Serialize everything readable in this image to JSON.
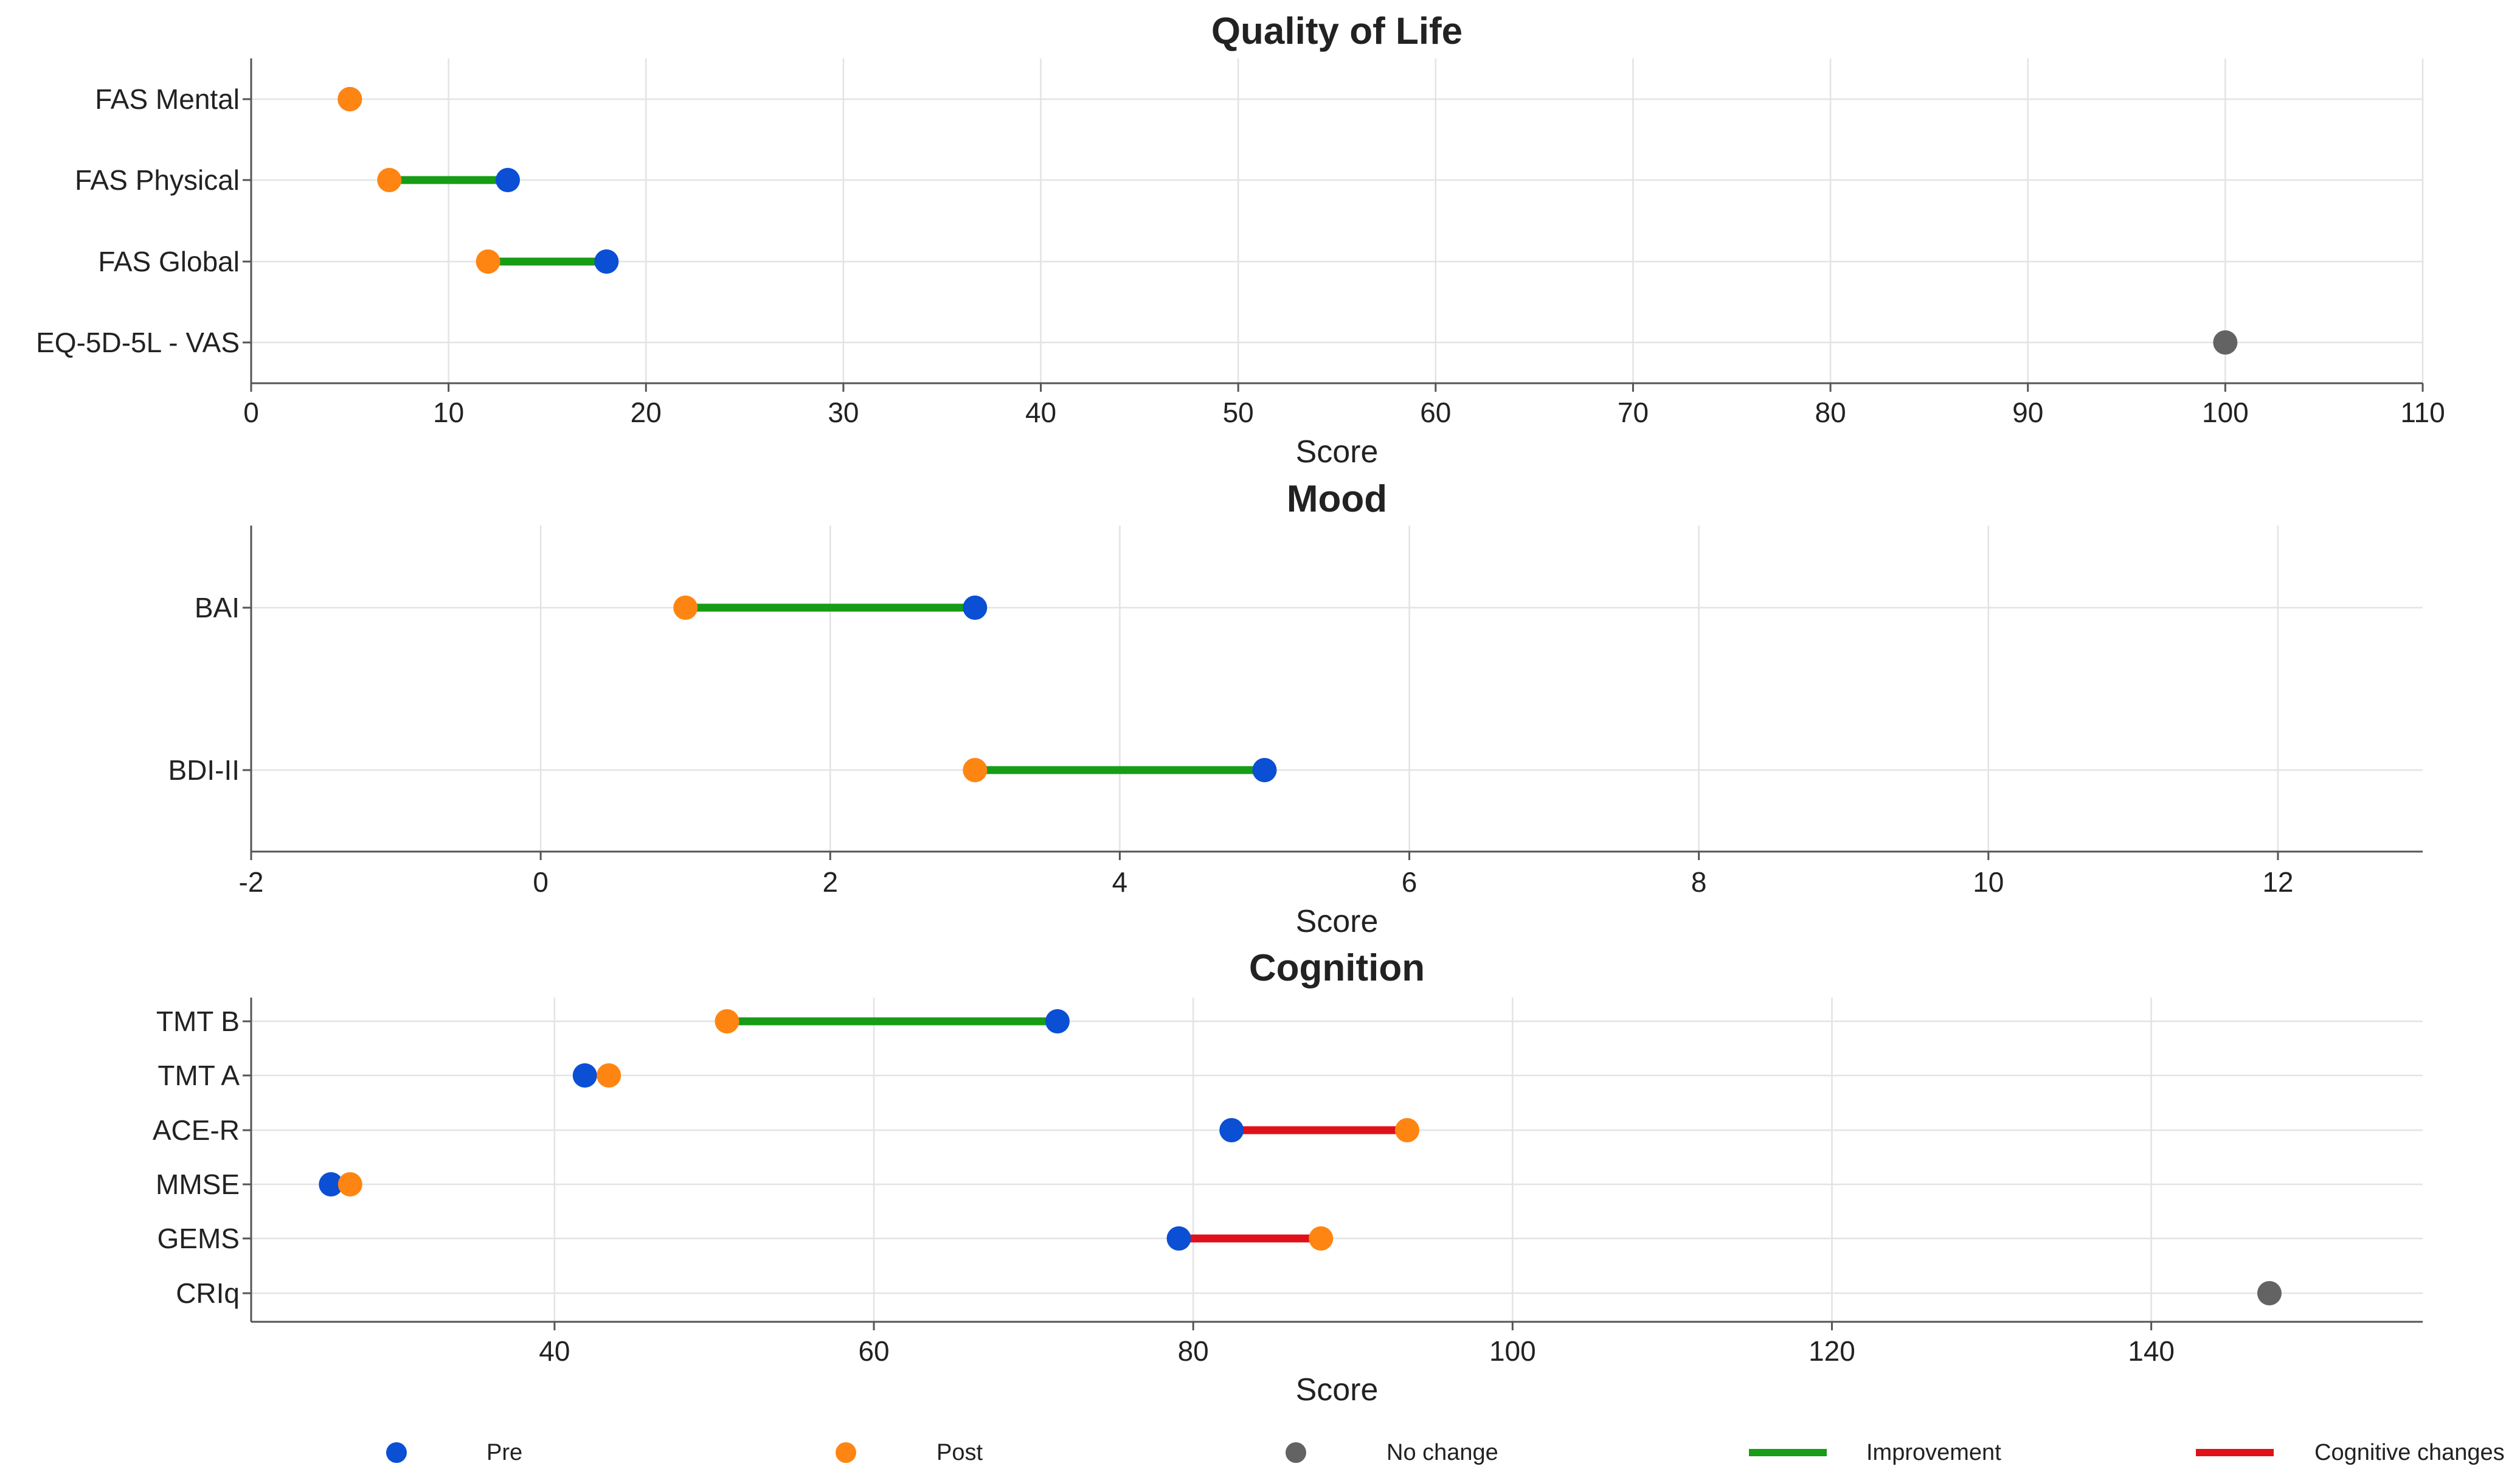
{
  "chart_data": [
    {
      "type": "dumbbell",
      "title": "Quality of Life",
      "xlabel": "Score",
      "xlim": [
        0,
        110
      ],
      "xticks": [
        0,
        10,
        20,
        30,
        40,
        50,
        60,
        70,
        80,
        90,
        100,
        110
      ],
      "grid": true,
      "rows": [
        {
          "label": "FAS Mental",
          "pre": 5,
          "post": 5,
          "change": "none"
        },
        {
          "label": "FAS Physical",
          "pre": 13,
          "post": 7,
          "change": "improvement"
        },
        {
          "label": "FAS Global",
          "pre": 18,
          "post": 12,
          "change": "improvement"
        },
        {
          "label": "EQ-5D-5L - VAS",
          "pre": 100,
          "post": 100,
          "change": "no change"
        }
      ]
    },
    {
      "type": "dumbbell",
      "title": "Mood",
      "xlabel": "Score",
      "xlim": [
        -2,
        13
      ],
      "xticks": [
        -2,
        0,
        2,
        4,
        6,
        8,
        10,
        12
      ],
      "grid": true,
      "rows": [
        {
          "label": "BAI",
          "pre": 3,
          "post": 1,
          "change": "improvement"
        },
        {
          "label": "BDI-II",
          "pre": 5,
          "post": 3,
          "change": "improvement"
        }
      ]
    },
    {
      "type": "dumbbell",
      "title": "Cognition",
      "xlabel": "Score",
      "xlim": [
        21,
        157
      ],
      "xticks": [
        40,
        60,
        80,
        100,
        120,
        140
      ],
      "grid": true,
      "rows": [
        {
          "label": "TMT B",
          "pre": 71.5,
          "post": 50.8,
          "change": "improvement"
        },
        {
          "label": "TMT A",
          "pre": 41.9,
          "post": 43.4,
          "change": "none"
        },
        {
          "label": "ACE-R",
          "pre": 82.4,
          "post": 93.4,
          "change": "cognitive"
        },
        {
          "label": "MMSE",
          "pre": 26,
          "post": 27.2,
          "change": "none"
        },
        {
          "label": "GEMS",
          "pre": 79.1,
          "post": 88,
          "change": "cognitive"
        },
        {
          "label": "CRIq",
          "pre": 147.4,
          "post": 147.4,
          "change": "no change"
        }
      ]
    }
  ],
  "legend": [
    {
      "key": "pre",
      "label": "Pre",
      "kind": "dot",
      "color": "#0a4fd4"
    },
    {
      "key": "post",
      "label": "Post",
      "kind": "dot",
      "color": "#ff8512"
    },
    {
      "key": "nochange",
      "label": "No change",
      "kind": "dot",
      "color": "#636363"
    },
    {
      "key": "improvement",
      "label": "Improvement",
      "kind": "line",
      "color": "#179c16"
    },
    {
      "key": "cognitive",
      "label": "Cognitive changes",
      "kind": "line",
      "color": "#e0101a"
    }
  ],
  "colors": {
    "pre": "#0a4fd4",
    "post": "#ff8512",
    "nochange": "#636363",
    "improvement": "#179c16",
    "cognitive": "#e0101a"
  }
}
